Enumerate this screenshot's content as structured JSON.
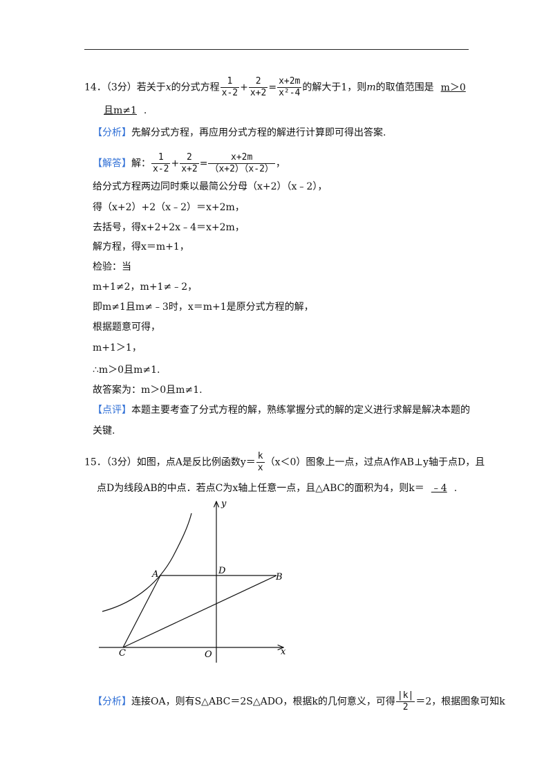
{
  "q14": {
    "lines": [
      [
        "14．（3分）若关于",
        "x",
        "的分式方程",
        {
          "num": "1",
          "den": "x-2"
        },
        "+",
        {
          "num": "2",
          "den": "x+2"
        },
        "=",
        {
          "num": "x+2m",
          "den": "x²-4"
        },
        "的解大于1，则",
        "m",
        "的取值范围是",
        {
          "answer": "m＞0"
        }
      ],
      [
        {
          "answer": "且m≠1"
        },
        "."
      ],
      [
        "【分析】",
        "先解分式方程，再应用分式方程的解进行计算即可得出答案."
      ],
      [
        "【解答】",
        "解：",
        {
          "num": "1",
          "den": "x-2"
        },
        "+",
        {
          "num": "2",
          "den": "x+2"
        },
        "=",
        {
          "num": "x+2m",
          "den": "（x+2）（x-2）"
        },
        "，"
      ],
      [
        "给分式方程两边同时乘以最简公分母（x+2）（x﹣2），"
      ],
      [
        "得（x+2）+2（x﹣2）＝x+2m，"
      ],
      [
        "去括号，得x+2+2x﹣4＝x+2m，"
      ],
      [
        "解方程，得x＝m+1，"
      ],
      [
        "检验：当"
      ],
      [
        "m+1≠2，m+1≠﹣2，"
      ],
      [
        "即m≠1且m≠﹣3时，x＝m+1是原分式方程的解，"
      ],
      [
        "根据题意可得，"
      ],
      [
        "m+1＞1，"
      ],
      [
        "∴m＞0且m≠1."
      ],
      [
        "故答案为：m＞0且m≠1."
      ],
      [
        "【点评】",
        "本题主要考查了分式方程的解，熟练掌握分式的解的定义进行求解是解决本题的"
      ],
      [
        "关键."
      ]
    ]
  },
  "q15": {
    "lines": [
      [
        "15．（3分）如图，点A是反比例函数y＝",
        {
          "num": "k",
          "den": "x"
        },
        "（x＜0）图象上一点，过点A作AB⊥y轴于点D，且"
      ],
      [
        "点D为线段AB的中点．若点C为x轴上任意一点，且△ABC的面积为4，则k＝",
        {
          "answer": "﹣4"
        },
        "."
      ],
      [
        "【分析】",
        "连接OA，则有S△ABC＝2S△ADO，根据k的几何意义，可得",
        {
          "num": "|k|",
          "den": "2"
        },
        "＝2，根据图象可知k"
      ]
    ],
    "figure": {
      "labels": [
        "A",
        "D",
        "B",
        "C",
        "O",
        "x",
        "y"
      ]
    }
  }
}
